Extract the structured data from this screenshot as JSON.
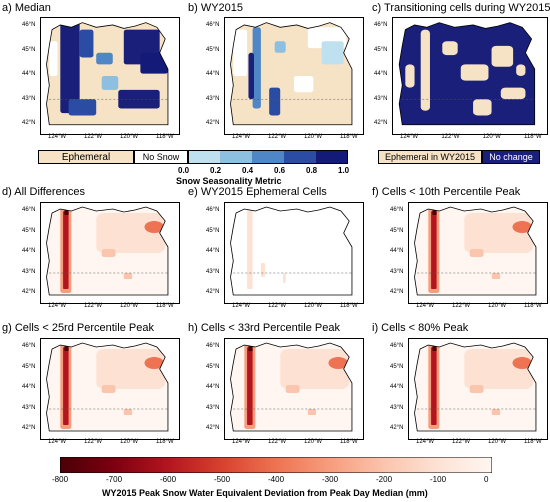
{
  "panels": [
    {
      "title": "a) Median",
      "type": "median"
    },
    {
      "title": "b) WY2015",
      "type": "wy2015"
    },
    {
      "title": "c) Transitioning cells during WY2015",
      "type": "transition"
    },
    {
      "title": "d) All Differences",
      "type": "diff"
    },
    {
      "title": "e) WY2015 Ephemeral Cells",
      "type": "ephemeral"
    },
    {
      "title": "f) Cells < 10th Percentile Peak",
      "type": "diff"
    },
    {
      "title": "g) Cells < 25rd Percentile Peak",
      "type": "diff"
    },
    {
      "title": "h) Cells < 33rd Percentile Peak",
      "type": "diff"
    },
    {
      "title": "i) Cells < 80% Peak",
      "type": "diff"
    }
  ],
  "lat_labels": [
    "46°N",
    "45°N",
    "44°N",
    "43°N",
    "42°N"
  ],
  "lon_labels": [
    "124°W",
    "122°W",
    "120°W",
    "118°W"
  ],
  "seasonality_legend": {
    "title": "Snow Seasonality Metric",
    "categories": [
      "Ephemeral",
      "No Snow"
    ],
    "ticks": [
      "0.0",
      "0.2",
      "0.4",
      "0.6",
      "0.8",
      "1.0"
    ]
  },
  "transition_legend": {
    "categories": [
      "Ephemeral in WY2015",
      "No change"
    ]
  },
  "swe_colorbar": {
    "title": "WY2015 Peak Snow Water Equivalent Deviation from Peak Day Median (mm)",
    "ticks": [
      "-800",
      "-700",
      "-600",
      "-500",
      "-400",
      "-300",
      "-200",
      "-100",
      "0"
    ]
  },
  "colors": {
    "ephemeral": "#f6e3c6",
    "no_snow": "#ffffff",
    "navy": "#1a1f7a",
    "seasonality_ramp": [
      "#bfe0ee",
      "#8cbfe0",
      "#4f86c6",
      "#2a4da3",
      "#141a78"
    ],
    "swe_ramp": [
      "#4b0007",
      "#7d0010",
      "#b3151f",
      "#d8412e",
      "#ee7352",
      "#f79d7d",
      "#fbc4ad",
      "#fde2d4",
      "#fff6f1"
    ]
  }
}
